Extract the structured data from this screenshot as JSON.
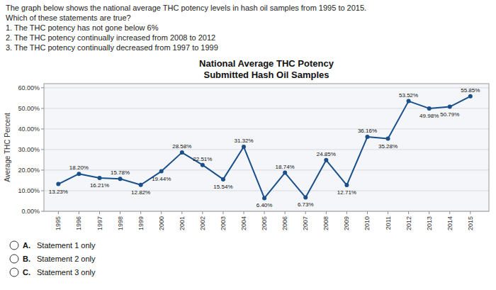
{
  "chart_data": {
    "type": "line",
    "title": "National Average THC Potency",
    "subtitle": "Submitted Hash Oil Samples",
    "y_label": "Average THC Percent",
    "annotations": [
      "The graph below shows the national average THC potency levels in hash oil samples from 1995 to 2015.",
      "Which of these statements are true?",
      "1. The THC potency has not gone below 6%",
      "2. The THC potency continually increased from 2008 to 2012",
      "3. The THC potency continually decreased from 1997 to 1999"
    ],
    "options": [
      {
        "label": "A.",
        "text": "Statement 1 only"
      },
      {
        "label": "B.",
        "text": "Statement 2 only"
      },
      {
        "label": "C.",
        "text": "Statement 3 only"
      }
    ],
    "x": [
      1995,
      1996,
      1997,
      1998,
      1999,
      2000,
      2001,
      2002,
      2003,
      2004,
      2005,
      2006,
      2007,
      2008,
      2009,
      2010,
      2011,
      2012,
      2013,
      2014,
      2015
    ],
    "values": [
      13.23,
      18.2,
      16.21,
      15.78,
      12.82,
      19.44,
      28.58,
      22.51,
      15.54,
      31.32,
      6.4,
      18.74,
      6.73,
      24.85,
      12.71,
      36.16,
      35.28,
      53.52,
      49.98,
      50.79,
      55.85
    ],
    "value_labels": [
      "13.23%",
      "18.20%",
      "16.21%",
      "15.78%",
      "12.82%",
      "19.44%",
      "28.58%",
      "22.51%",
      "15.54%",
      "31.32%",
      "6.40%",
      "18.74%",
      "6.73%",
      "24.85%",
      "12.71%",
      "36.16%",
      "35.28%",
      "53.52%",
      "49.98%",
      "50.79%",
      "55.85%"
    ],
    "data_labels": true,
    "color": "#1a4f8a",
    "marker": "circle",
    "xlim": [
      1994.3,
      2015.9
    ],
    "xticks": [
      1995,
      1996,
      1997,
      1998,
      1999,
      2000,
      2001,
      2002,
      2003,
      2004,
      2005,
      2006,
      2007,
      2008,
      2009,
      2010,
      2011,
      2012,
      2013,
      2014,
      2015
    ],
    "ylim": [
      0,
      62
    ],
    "yticks": [
      {
        "value": 0,
        "label": "0.00%"
      },
      {
        "value": 10,
        "label": "10.00%"
      },
      {
        "value": 20,
        "label": "20.00%"
      },
      {
        "value": 30,
        "label": "30.00%"
      },
      {
        "value": 40,
        "label": "40.00%"
      },
      {
        "value": 50,
        "label": "50.00%"
      },
      {
        "value": 60,
        "label": "60.00%"
      }
    ],
    "grid": true
  }
}
